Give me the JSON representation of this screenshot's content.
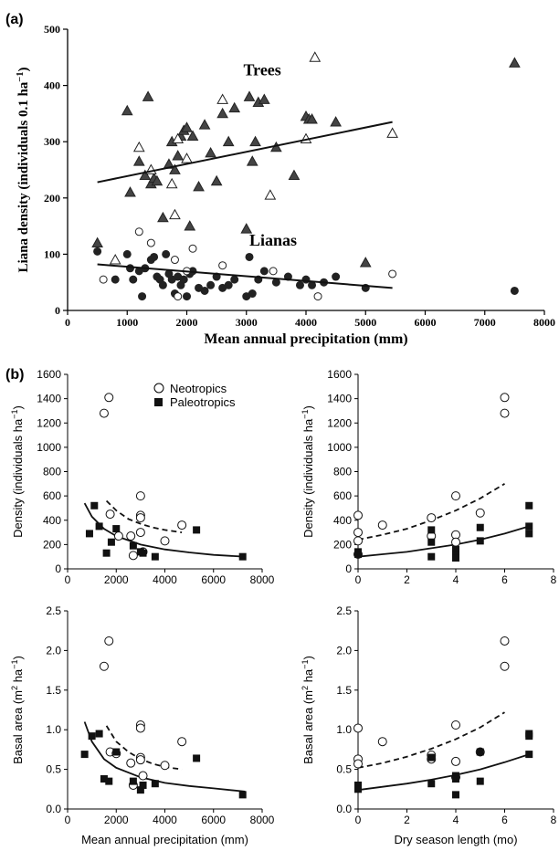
{
  "panel_a": {
    "label": "(a)",
    "chart_data": {
      "type": "scatter",
      "xlabel": "Mean annual precipitation (mm)",
      "ylabel": "Liana density (individuals 0.1 ha−1)",
      "xlim": [
        0,
        8000
      ],
      "ylim": [
        0,
        500
      ],
      "xticks": [
        "0",
        "1000",
        "2000",
        "3000",
        "4000",
        "5000",
        "6000",
        "7000",
        "8000"
      ],
      "yticks": [
        "0",
        "100",
        "200",
        "300",
        "400",
        "500"
      ],
      "annotations": [
        "Trees",
        "Lianas"
      ],
      "series": [
        {
          "name": "Trees",
          "marker": "triangle-filled",
          "x": [
            500,
            1000,
            1050,
            1200,
            1300,
            1350,
            1400,
            1450,
            1500,
            1600,
            1700,
            1750,
            1800,
            1850,
            1900,
            1950,
            2000,
            2050,
            2100,
            2200,
            2300,
            2400,
            2500,
            2600,
            2700,
            2800,
            3000,
            3050,
            3100,
            3150,
            3200,
            3300,
            3500,
            3800,
            4000,
            4050,
            4100,
            4500,
            5000,
            7500
          ],
          "y": [
            120,
            355,
            210,
            265,
            240,
            380,
            225,
            235,
            230,
            165,
            260,
            300,
            250,
            275,
            310,
            320,
            325,
            150,
            310,
            220,
            330,
            280,
            230,
            350,
            300,
            360,
            145,
            380,
            265,
            300,
            370,
            375,
            290,
            240,
            345,
            340,
            340,
            335,
            85,
            440
          ]
        },
        {
          "name": "Trees",
          "marker": "triangle-open",
          "x": [
            800,
            1200,
            1400,
            1750,
            1800,
            1850,
            2000,
            2600,
            3400,
            4000,
            4150,
            5450
          ],
          "y": [
            90,
            290,
            250,
            225,
            170,
            305,
            270,
            375,
            205,
            305,
            450,
            315
          ]
        },
        {
          "name": "Lianas",
          "marker": "circle-filled",
          "x": [
            500,
            800,
            1000,
            1050,
            1100,
            1200,
            1250,
            1300,
            1400,
            1450,
            1500,
            1550,
            1600,
            1650,
            1700,
            1750,
            1800,
            1850,
            1900,
            1950,
            2000,
            2050,
            2100,
            2200,
            2300,
            2400,
            2500,
            2600,
            2700,
            2800,
            3000,
            3050,
            3100,
            3200,
            3300,
            3500,
            3700,
            3900,
            4000,
            4100,
            4300,
            4500,
            5000,
            7500
          ],
          "y": [
            105,
            55,
            100,
            75,
            55,
            70,
            25,
            75,
            90,
            95,
            60,
            55,
            45,
            100,
            65,
            55,
            30,
            60,
            45,
            55,
            25,
            65,
            70,
            40,
            35,
            45,
            60,
            40,
            45,
            55,
            25,
            95,
            30,
            55,
            70,
            50,
            60,
            45,
            55,
            45,
            50,
            60,
            40,
            35
          ]
        },
        {
          "name": "Lianas",
          "marker": "circle-open",
          "x": [
            600,
            1200,
            1400,
            1800,
            1850,
            2000,
            2100,
            2600,
            3450,
            4200,
            5450
          ],
          "y": [
            55,
            140,
            120,
            90,
            25,
            70,
            110,
            80,
            70,
            25,
            65
          ]
        },
        {
          "name": "Trees",
          "type": "line",
          "x": [
            500,
            5450
          ],
          "y": [
            228,
            335
          ]
        },
        {
          "name": "Lianas",
          "type": "line",
          "x": [
            500,
            5450
          ],
          "y": [
            82,
            40
          ]
        }
      ]
    }
  },
  "panel_b": {
    "label": "(b)",
    "legend": [
      {
        "name": "Neotropics",
        "marker": "circle-open"
      },
      {
        "name": "Paleotropics",
        "marker": "square-filled"
      }
    ],
    "chart_data": [
      {
        "type": "scatter",
        "xlabel": "",
        "ylabel": "Density (individuals ha−1)",
        "xlim": [
          0,
          8000
        ],
        "ylim": [
          0,
          1600
        ],
        "xticks": [
          "0",
          "2000",
          "4000",
          "6000",
          "8000"
        ],
        "yticks": [
          "0",
          "200",
          "400",
          "600",
          "800",
          "1000",
          "1200",
          "1400",
          "1600"
        ],
        "series": [
          {
            "name": "Neotropics",
            "marker": "circle-open",
            "x": [
              1500,
              1700,
              1750,
              2100,
              2600,
              2700,
              3000,
              3000,
              3000,
              3000,
              3100,
              4000,
              4700
            ],
            "y": [
              1280,
              1410,
              450,
              270,
              270,
              110,
              600,
              440,
              420,
              300,
              140,
              230,
              360
            ]
          },
          {
            "name": "Paleotropics",
            "marker": "square-filled",
            "x": [
              900,
              1100,
              1300,
              1600,
              1800,
              2000,
              2700,
              3000,
              3100,
              3600,
              5300,
              7200
            ],
            "y": [
              290,
              520,
              350,
              130,
              220,
              330,
              190,
              140,
              130,
              100,
              320,
              100
            ]
          },
          {
            "name": "Neotropics",
            "type": "dashed-curve",
            "x": [
              1600,
              2000,
              2500,
              3000,
              3500,
              4000,
              4700
            ],
            "y": [
              560,
              480,
              410,
              370,
              340,
              320,
              300
            ]
          },
          {
            "name": "Paleotropics",
            "type": "curve",
            "x": [
              700,
              1000,
              1500,
              2000,
              3000,
              4000,
              5000,
              6000,
              7300
            ],
            "y": [
              540,
              430,
              330,
              270,
              200,
              160,
              135,
              115,
              100
            ]
          }
        ]
      },
      {
        "type": "scatter",
        "xlabel": "",
        "ylabel": "Density (individuals ha−1)",
        "xlim": [
          0,
          8
        ],
        "ylim": [
          0,
          1600
        ],
        "xticks": [
          "0",
          "2",
          "4",
          "6",
          "8"
        ],
        "yticks": [
          "0",
          "200",
          "400",
          "600",
          "800",
          "1000",
          "1200",
          "1400",
          "1600"
        ],
        "series": [
          {
            "name": "Neotropics",
            "marker": "circle-open",
            "x": [
              0,
              0,
              0,
              0,
              1,
              3,
              3,
              4,
              4,
              4,
              5,
              6,
              6
            ],
            "y": [
              440,
              300,
              230,
              120,
              360,
              420,
              270,
              600,
              280,
              220,
              460,
              1410,
              1280
            ]
          },
          {
            "name": "Paleotropics",
            "marker": "square-filled",
            "x": [
              0,
              0,
              3,
              3,
              3,
              4,
              4,
              4,
              5,
              5,
              7,
              7,
              7
            ],
            "y": [
              140,
              120,
              320,
              220,
              100,
              160,
              120,
              90,
              340,
              230,
              520,
              350,
              290
            ]
          },
          {
            "name": "Neotropics",
            "type": "dashed-curve",
            "x": [
              0,
              1,
              2,
              3,
              4,
              5,
              6
            ],
            "y": [
              240,
              280,
              330,
              400,
              480,
              580,
              700
            ]
          },
          {
            "name": "Paleotropics",
            "type": "curve",
            "x": [
              0,
              1,
              2,
              3,
              4,
              5,
              6,
              7
            ],
            "y": [
              100,
              120,
              140,
              170,
              200,
              240,
              290,
              350
            ]
          }
        ]
      },
      {
        "type": "scatter",
        "xlabel": "Mean annual precipitation (mm)",
        "ylabel": "Basal area (m2 ha−1)",
        "xlim": [
          0,
          8000
        ],
        "ylim": [
          0,
          2.5
        ],
        "xticks": [
          "0",
          "2000",
          "4000",
          "6000",
          "8000"
        ],
        "yticks": [
          "0.0",
          "0.5",
          "1.0",
          "1.5",
          "2.0",
          "2.5"
        ],
        "series": [
          {
            "name": "Neotropics",
            "marker": "circle-open",
            "x": [
              1500,
              1700,
              1750,
              2000,
              2600,
              2700,
              3000,
              3000,
              3000,
              3000,
              3100,
              4000,
              4700
            ],
            "y": [
              1.8,
              2.12,
              0.72,
              0.7,
              0.58,
              0.3,
              1.06,
              1.02,
              0.65,
              0.62,
              0.42,
              0.55,
              0.85
            ]
          },
          {
            "name": "Paleotropics",
            "marker": "square-filled",
            "x": [
              700,
              1000,
              1300,
              1500,
              1700,
              2000,
              2700,
              3000,
              3100,
              3600,
              5300,
              7200
            ],
            "y": [
              0.69,
              0.92,
              0.95,
              0.38,
              0.35,
              0.72,
              0.35,
              0.24,
              0.3,
              0.32,
              0.64,
              0.18
            ]
          },
          {
            "name": "Neotropics",
            "type": "dashed-curve",
            "x": [
              1600,
              2000,
              2500,
              3000,
              3500,
              4000,
              4700
            ],
            "y": [
              1.05,
              0.85,
              0.72,
              0.63,
              0.57,
              0.53,
              0.5
            ]
          },
          {
            "name": "Paleotropics",
            "type": "curve",
            "x": [
              700,
              1000,
              1500,
              2000,
              3000,
              4000,
              5000,
              6000,
              7300
            ],
            "y": [
              1.1,
              0.85,
              0.63,
              0.52,
              0.4,
              0.33,
              0.29,
              0.26,
              0.22
            ]
          }
        ]
      },
      {
        "type": "scatter",
        "xlabel": "Dry season length (mo)",
        "ylabel": "Basal area (m2 ha−1)",
        "xlim": [
          0,
          8
        ],
        "ylim": [
          0,
          2.5
        ],
        "xticks": [
          "0",
          "2",
          "4",
          "6",
          "8"
        ],
        "yticks": [
          "0.0",
          "0.5",
          "1.0",
          "1.5",
          "2.0",
          "2.5"
        ],
        "series": [
          {
            "name": "Neotropics",
            "marker": "circle-open",
            "x": [
              0,
              0,
              0,
              1,
              3,
              3,
              4,
              4,
              4,
              5,
              6,
              6
            ],
            "y": [
              1.02,
              0.63,
              0.57,
              0.85,
              0.68,
              0.63,
              1.06,
              0.6,
              0.4,
              0.72,
              2.12,
              1.8
            ]
          },
          {
            "name": "Paleotropics",
            "marker": "square-filled",
            "x": [
              0,
              0,
              3,
              3,
              4,
              4,
              4,
              5,
              5,
              7,
              7,
              7
            ],
            "y": [
              0.3,
              0.25,
              0.65,
              0.32,
              0.42,
              0.38,
              0.18,
              0.72,
              0.35,
              0.95,
              0.92,
              0.69
            ]
          },
          {
            "name": "Neotropics",
            "type": "dashed-curve",
            "x": [
              0,
              1,
              2,
              3,
              4,
              5,
              6
            ],
            "y": [
              0.52,
              0.58,
              0.66,
              0.76,
              0.88,
              1.03,
              1.22
            ]
          },
          {
            "name": "Paleotropics",
            "type": "curve",
            "x": [
              0,
              1,
              2,
              3,
              4,
              5,
              6,
              7
            ],
            "y": [
              0.24,
              0.28,
              0.32,
              0.37,
              0.43,
              0.5,
              0.59,
              0.69
            ]
          }
        ]
      }
    ]
  }
}
